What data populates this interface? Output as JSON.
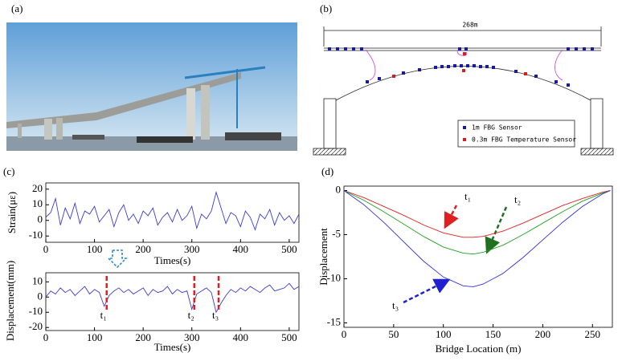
{
  "panel_labels": [
    "(a)",
    "(b)",
    "(c)",
    "(d)"
  ],
  "bridge_diagram": {
    "span_label": "268m",
    "legend": [
      "1m FBG Sensor",
      "0.3m FBG Temperature Sensor"
    ]
  },
  "chart_data": [
    {
      "type": "line",
      "y_label": "Strain(με)",
      "x_label": "Times(s)",
      "x": [
        0,
        10,
        20,
        30,
        40,
        50,
        60,
        70,
        80,
        90,
        100,
        110,
        120,
        130,
        140,
        150,
        160,
        170,
        180,
        190,
        200,
        210,
        220,
        230,
        240,
        250,
        260,
        270,
        280,
        290,
        300,
        310,
        320,
        330,
        340,
        350,
        360,
        370,
        380,
        390,
        400,
        410,
        420,
        430,
        440,
        450,
        460,
        470,
        480,
        490,
        500,
        510,
        520
      ],
      "series": [
        {
          "color": "#3b3bd6",
          "values": [
            2,
            5,
            14,
            -3,
            8,
            1,
            11,
            -2,
            6,
            4,
            9,
            -1,
            3,
            7,
            -4,
            5,
            10,
            0,
            4,
            -2,
            6,
            3,
            8,
            -3,
            2,
            5,
            -1,
            7,
            0,
            3,
            9,
            -5,
            4,
            1,
            6,
            18,
            8,
            -2,
            5,
            3,
            -4,
            6,
            2,
            -6,
            4,
            1,
            7,
            -3,
            5,
            0,
            3,
            -2,
            4
          ]
        }
      ],
      "xlim": [
        0,
        520
      ],
      "xticks": [
        0,
        100,
        200,
        300,
        400,
        500
      ],
      "ylim": [
        -14,
        24
      ],
      "yticks": [
        -10,
        0,
        10,
        20
      ]
    },
    {
      "type": "line",
      "y_label": "Displacement(mm)",
      "x_label": "Times(s)",
      "x": [
        0,
        10,
        20,
        30,
        40,
        50,
        60,
        70,
        80,
        90,
        100,
        110,
        120,
        130,
        140,
        150,
        160,
        170,
        180,
        190,
        200,
        210,
        220,
        230,
        240,
        250,
        260,
        270,
        280,
        290,
        300,
        310,
        320,
        330,
        340,
        350,
        360,
        370,
        380,
        390,
        400,
        410,
        420,
        430,
        440,
        450,
        460,
        470,
        480,
        490,
        500,
        510,
        520
      ],
      "series": [
        {
          "color": "#3b3bd6",
          "values": [
            0,
            4,
            2,
            6,
            3,
            5,
            1,
            4,
            7,
            2,
            5,
            3,
            -6,
            1,
            4,
            6,
            3,
            5,
            2,
            4,
            6,
            1,
            5,
            3,
            4,
            7,
            2,
            5,
            3,
            4,
            -8,
            2,
            4,
            6,
            3,
            -10,
            -4,
            1,
            5,
            3,
            6,
            4,
            7,
            5,
            3,
            6,
            8,
            4,
            5,
            6,
            9,
            5,
            7
          ]
        }
      ],
      "markers": [
        {
          "x": 125,
          "label": "t₁"
        },
        {
          "x": 305,
          "label": "t₂"
        },
        {
          "x": 355,
          "label": "t₃"
        }
      ],
      "xlim": [
        0,
        520
      ],
      "xticks": [
        0,
        100,
        200,
        300,
        400,
        500
      ],
      "ylim": [
        -22,
        16
      ],
      "yticks": [
        -20,
        -10,
        0,
        10
      ]
    },
    {
      "type": "line",
      "y_label": "Displacement",
      "x_label": "Bridge Location (m)",
      "x": [
        0,
        20,
        40,
        60,
        80,
        100,
        120,
        130,
        140,
        160,
        180,
        200,
        220,
        240,
        260,
        268
      ],
      "series": [
        {
          "color": "#e02020",
          "values": [
            0,
            -0.8,
            -1.8,
            -2.8,
            -3.9,
            -4.8,
            -5.3,
            -5.3,
            -5.2,
            -4.6,
            -3.7,
            -2.7,
            -1.7,
            -0.9,
            -0.2,
            0
          ]
        },
        {
          "color": "#20a020",
          "values": [
            0,
            -1.1,
            -2.4,
            -3.8,
            -5.2,
            -6.4,
            -7.1,
            -7.2,
            -7.0,
            -6.2,
            -5.0,
            -3.7,
            -2.4,
            -1.2,
            -0.3,
            0
          ]
        },
        {
          "color": "#3030e0",
          "values": [
            0,
            -1.6,
            -3.6,
            -5.8,
            -8.0,
            -9.8,
            -10.8,
            -10.9,
            -10.6,
            -9.4,
            -7.6,
            -5.6,
            -3.6,
            -1.8,
            -0.4,
            0
          ]
        }
      ],
      "annotations": [
        "t₁",
        "t₂",
        "t₃"
      ],
      "xlim": [
        0,
        270
      ],
      "xticks": [
        0,
        50,
        100,
        150,
        200,
        250
      ],
      "ylim": [
        -15.5,
        0.5
      ],
      "yticks": [
        -15,
        -10,
        -5,
        0
      ]
    }
  ]
}
